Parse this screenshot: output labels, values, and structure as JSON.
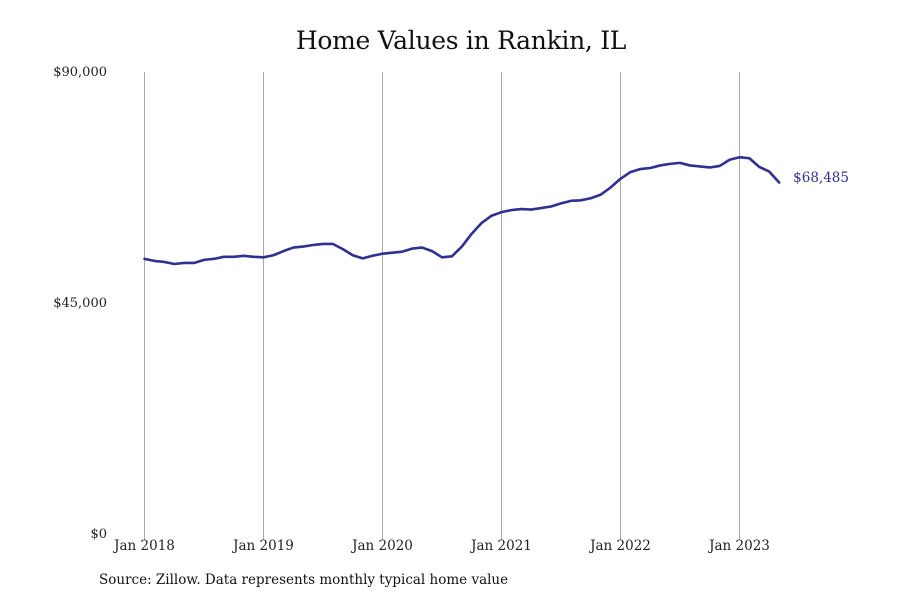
{
  "chart_data": {
    "type": "line",
    "title": "Home Values in Rankin, IL",
    "xlabel": "",
    "ylabel": "",
    "ylim": [
      0,
      90000
    ],
    "xlim": [
      "2018-01",
      "2023-12"
    ],
    "y_ticks": [
      "$0",
      "$45,000",
      "$90,000"
    ],
    "y_tick_values": [
      0,
      45000,
      90000
    ],
    "x_ticks": [
      "Jan 2018",
      "Jan 2019",
      "Jan 2020",
      "Jan 2021",
      "Jan 2022",
      "Jan 2023"
    ],
    "x_tick_values": [
      "2018-01",
      "2019-01",
      "2020-01",
      "2021-01",
      "2022-01",
      "2023-01"
    ],
    "grid": "vertical",
    "line_color": "#2e3192",
    "grid_color": "#aaaaaa",
    "end_label": "$68,485",
    "series": [
      {
        "x": [
          "2018-01",
          "2018-02",
          "2018-03",
          "2018-04",
          "2018-05",
          "2018-06",
          "2018-07",
          "2018-08",
          "2018-09",
          "2018-10",
          "2018-11",
          "2018-12",
          "2019-01",
          "2019-02",
          "2019-03",
          "2019-04",
          "2019-05",
          "2019-06",
          "2019-07",
          "2019-08",
          "2019-09",
          "2019-10",
          "2019-11",
          "2019-12",
          "2020-01",
          "2020-02",
          "2020-03",
          "2020-04",
          "2020-05",
          "2020-06",
          "2020-07",
          "2020-08",
          "2020-09",
          "2020-10",
          "2020-11",
          "2020-12",
          "2021-01",
          "2021-02",
          "2021-03",
          "2021-04",
          "2021-05",
          "2021-06",
          "2021-07",
          "2021-08",
          "2021-09",
          "2021-10",
          "2021-11",
          "2021-12",
          "2022-01",
          "2022-02",
          "2022-03",
          "2022-04",
          "2022-05",
          "2022-06",
          "2022-07",
          "2022-08",
          "2022-09",
          "2022-10",
          "2022-11",
          "2022-12",
          "2023-01",
          "2023-02",
          "2023-03",
          "2023-04",
          "2023-05"
        ],
        "values": [
          53600,
          53200,
          53000,
          52600,
          52800,
          52800,
          53400,
          53600,
          54000,
          54000,
          54200,
          54000,
          53900,
          54300,
          55100,
          55800,
          56000,
          56300,
          56500,
          56500,
          55500,
          54300,
          53700,
          54200,
          54600,
          54800,
          55000,
          55600,
          55800,
          55100,
          53900,
          54100,
          56000,
          58500,
          60600,
          62000,
          62700,
          63100,
          63300,
          63200,
          63500,
          63800,
          64400,
          64900,
          65000,
          65400,
          66100,
          67500,
          69200,
          70500,
          71100,
          71300,
          71800,
          72100,
          72300,
          71800,
          71600,
          71400,
          71700,
          72900,
          73400,
          73200,
          71500,
          70600,
          68485
        ]
      }
    ]
  },
  "source": "Source: Zillow. Data represents monthly typical home value"
}
